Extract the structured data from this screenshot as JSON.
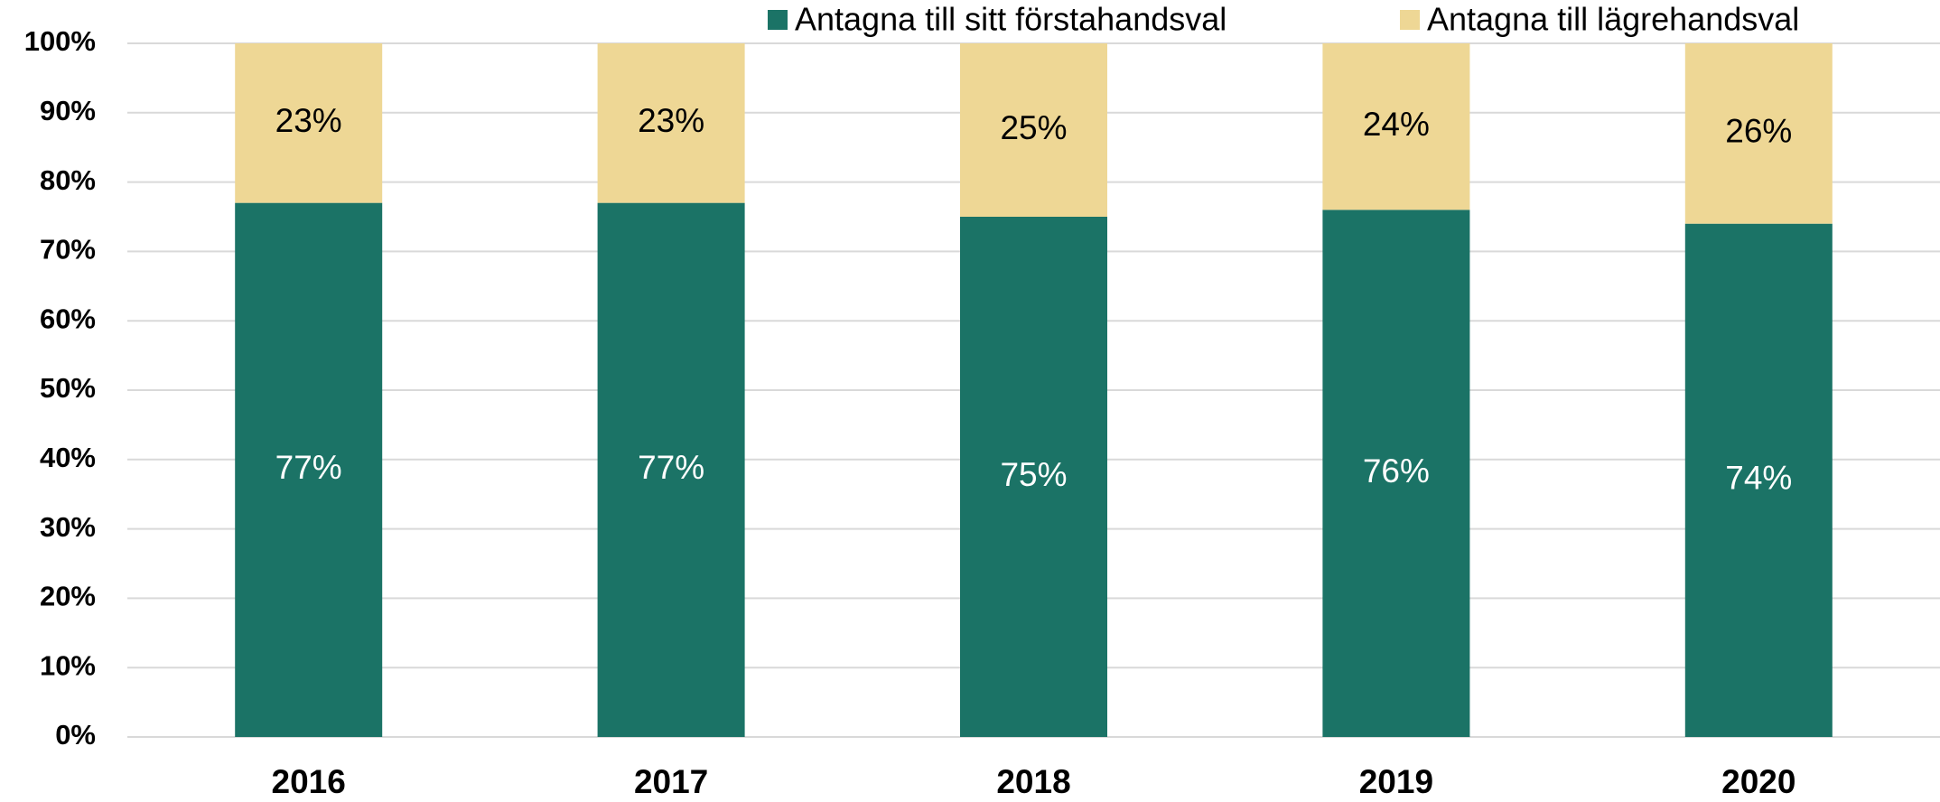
{
  "chart_data": {
    "type": "stacked_bar",
    "categories": [
      "2016",
      "2017",
      "2018",
      "2019",
      "2020"
    ],
    "series": [
      {
        "name": "Antagna till sitt förstahandsval",
        "color": "#1b7366",
        "values": [
          77,
          77,
          75,
          76,
          74
        ],
        "value_labels": [
          "77%",
          "77%",
          "75%",
          "76%",
          "74%"
        ]
      },
      {
        "name": "Antagna till lägrehandsval",
        "color": "#eed795",
        "values": [
          23,
          23,
          25,
          24,
          26
        ],
        "value_labels": [
          "23%",
          "23%",
          "25%",
          "24%",
          "26%"
        ]
      }
    ],
    "ylim": [
      0,
      100
    ],
    "yticks": [
      {
        "value": 0,
        "label": "0%"
      },
      {
        "value": 10,
        "label": "10%"
      },
      {
        "value": 20,
        "label": "20%"
      },
      {
        "value": 30,
        "label": "30%"
      },
      {
        "value": 40,
        "label": "40%"
      },
      {
        "value": 50,
        "label": "50%"
      },
      {
        "value": 60,
        "label": "60%"
      },
      {
        "value": 70,
        "label": "70%"
      },
      {
        "value": 80,
        "label": "80%"
      },
      {
        "value": 90,
        "label": "90%"
      },
      {
        "value": 100,
        "label": "100%"
      }
    ],
    "grid": true,
    "legend": "top"
  }
}
